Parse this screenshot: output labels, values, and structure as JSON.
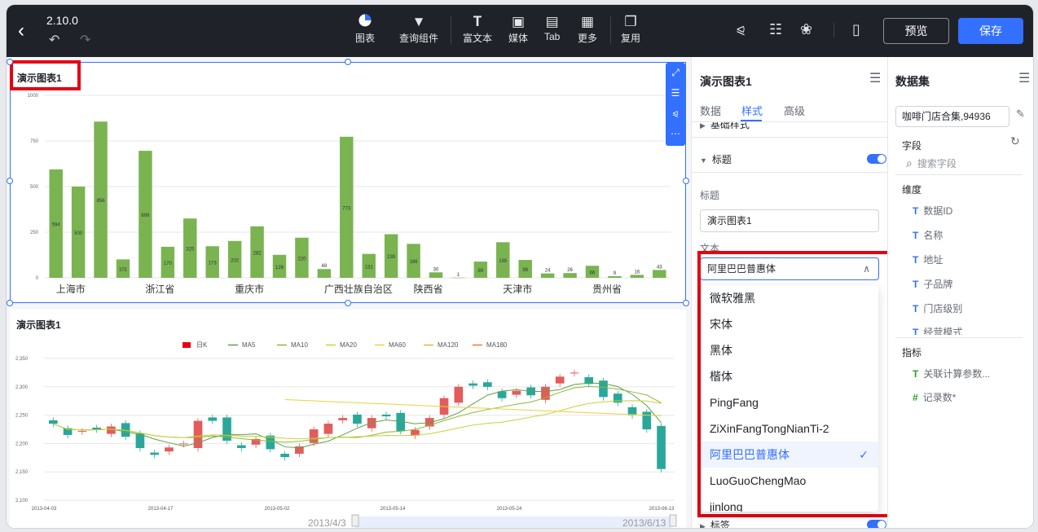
{
  "header": {
    "version": "2.10.0",
    "tools": [
      {
        "label": "图表",
        "icon": "pie-chart-icon"
      },
      {
        "label": "查询组件",
        "icon": "filter-icon"
      },
      {
        "label": "富文本",
        "icon": "rich-text-icon"
      },
      {
        "label": "媒体",
        "icon": "image-icon"
      },
      {
        "label": "Tab",
        "icon": "tab-icon"
      },
      {
        "label": "更多",
        "icon": "grid-icon"
      },
      {
        "label": "复用",
        "icon": "copy-icon"
      }
    ],
    "preview_label": "预览",
    "save_label": "保存"
  },
  "chart1": {
    "title": "演示图表1",
    "chart_data": {
      "type": "bar",
      "y_ticks": [
        0,
        250,
        500,
        750,
        1000
      ],
      "ylim": [
        0,
        1000
      ],
      "x_tick_labels": [
        "上海市",
        "浙江省",
        "重庆市",
        "广西壮族自治区",
        "陕西省",
        "天津市",
        "贵州省"
      ],
      "values": [
        594,
        500,
        856,
        101,
        696,
        170,
        325,
        173,
        202,
        282,
        126,
        220,
        48,
        773,
        131,
        239,
        186,
        30,
        1,
        89,
        195,
        98,
        24,
        26,
        66,
        9,
        16,
        43
      ],
      "color": "#7ab451"
    }
  },
  "chart2": {
    "title": "演示图表1",
    "chart_data": {
      "type": "candlestick",
      "legend": [
        "日K",
        "MA5",
        "MA10",
        "MA20",
        "MA60",
        "MA120",
        "MA180"
      ],
      "legend_colors": [
        "#e60012",
        "#5ba346",
        "#8fb838",
        "#c8d234",
        "#e8d33a",
        "#eab03a",
        "#ef7d2b"
      ],
      "y_ticks": [
        2100,
        2150,
        2200,
        2250,
        2300,
        2350
      ],
      "ylim": [
        2100,
        2350
      ],
      "x_tick_labels": [
        "2013-04-03",
        "2013-04-17",
        "2013-05-02",
        "2013-05-14",
        "2013-05-24",
        "2013-06-13"
      ],
      "zoom_start": "2013/4/3",
      "zoom_end": "2013/6/13",
      "up_color": "#e45b5b",
      "down_color": "#2aa79b"
    }
  },
  "style_panel": {
    "title": "演示图表1",
    "tabs": [
      "数据",
      "样式",
      "高级"
    ],
    "section_basic": "基础样式",
    "section_title": "标题",
    "label_title": "标题",
    "title_value": "演示图表1",
    "label_text": "文本",
    "font_selected": "阿里巴巴普惠体",
    "font_options": [
      "微软雅黑",
      "宋体",
      "黑体",
      "楷体",
      "PingFang",
      "ZiXinFangTongNianTi-2",
      "阿里巴巴普惠体",
      "LuoGuoChengMao",
      "jinlong"
    ],
    "section_label": "标签"
  },
  "dataset_panel": {
    "title": "数据集",
    "dataset": "咖啡门店合集,94936",
    "fields_label": "字段",
    "search_placeholder": "搜索字段",
    "dimensions_label": "维度",
    "dimensions": [
      "数据ID",
      "名称",
      "地址",
      "子品牌",
      "门店级别",
      "经营模式"
    ],
    "metrics_label": "指标",
    "metrics": [
      "关联计算参数...",
      "记录数*"
    ]
  }
}
